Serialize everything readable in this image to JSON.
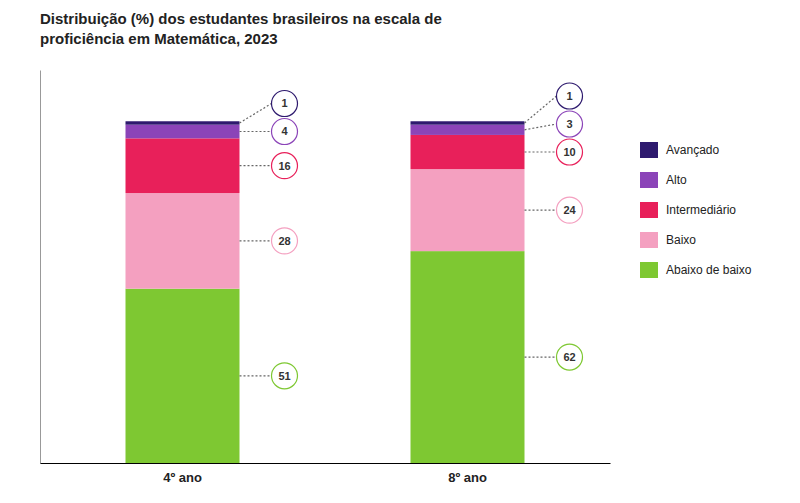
{
  "chart_data": {
    "type": "bar",
    "title": "Distribuição (%) dos estudantes brasileiros na escala de\nproficiência em Matemática, 2023",
    "categories": [
      "4º ano",
      "8º ano"
    ],
    "series": [
      {
        "name": "Abaixo de baixo",
        "values": [
          51,
          62
        ],
        "color": "#7ec832"
      },
      {
        "name": "Baixo",
        "values": [
          28,
          24
        ],
        "color": "#f4a0c0"
      },
      {
        "name": "Intermediário",
        "values": [
          16,
          10
        ],
        "color": "#e8205a"
      },
      {
        "name": "Alto",
        "values": [
          4,
          3
        ],
        "color": "#8b44b8"
      },
      {
        "name": "Avançado",
        "values": [
          1,
          1
        ],
        "color": "#2e1a6e"
      }
    ],
    "stacked": true,
    "data_labels": true,
    "ylim": [
      0,
      115
    ],
    "tick_labels": "x",
    "legend": "right"
  }
}
